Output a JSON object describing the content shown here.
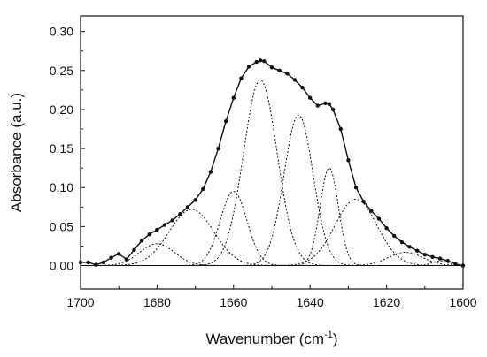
{
  "chart_data": {
    "type": "line",
    "title": "",
    "xlabel": "Wavenumber (cm",
    "xlabel_sup": "-1",
    "xlabel_suffix": ")",
    "ylabel": "Absorbance (a.u.)",
    "xlim": [
      1700,
      1600
    ],
    "ylim": [
      -0.03,
      0.32
    ],
    "x_ticks": [
      1700,
      1680,
      1660,
      1640,
      1620,
      1600
    ],
    "x_tick_labels": [
      "1700",
      "1680",
      "1660",
      "1640",
      "1620",
      "1600"
    ],
    "y_ticks": [
      0.0,
      0.05,
      0.1,
      0.15,
      0.2,
      0.25,
      0.3
    ],
    "y_tick_labels": [
      "0.00",
      "0.05",
      "0.10",
      "0.15",
      "0.20",
      "0.25",
      "0.30"
    ],
    "grid": false,
    "legend": "none",
    "colors": {
      "measured": "#111111",
      "bands": "#111111",
      "baseline": "#111111"
    },
    "measured": {
      "x": [
        1700,
        1698,
        1696,
        1694,
        1692,
        1690,
        1688,
        1686,
        1684,
        1682,
        1680,
        1678,
        1676,
        1674,
        1672,
        1670,
        1668,
        1666,
        1664,
        1662,
        1660,
        1658,
        1656,
        1654,
        1653,
        1652,
        1650,
        1648,
        1646,
        1644,
        1642,
        1640,
        1638,
        1636,
        1635,
        1634,
        1632,
        1630,
        1628,
        1626,
        1624,
        1622,
        1620,
        1618,
        1616,
        1614,
        1612,
        1610,
        1608,
        1606,
        1604,
        1602,
        1600
      ],
      "y": [
        0.004,
        0.004,
        0.001,
        0.004,
        0.01,
        0.015,
        0.008,
        0.02,
        0.032,
        0.04,
        0.046,
        0.052,
        0.058,
        0.066,
        0.075,
        0.084,
        0.098,
        0.12,
        0.15,
        0.185,
        0.215,
        0.24,
        0.255,
        0.261,
        0.263,
        0.262,
        0.254,
        0.25,
        0.246,
        0.238,
        0.228,
        0.215,
        0.205,
        0.208,
        0.207,
        0.2,
        0.175,
        0.135,
        0.1,
        0.082,
        0.07,
        0.06,
        0.048,
        0.038,
        0.03,
        0.024,
        0.019,
        0.014,
        0.011,
        0.009,
        0.006,
        0.002,
        0.0
      ]
    },
    "bands": [
      {
        "center": 1680,
        "height": 0.028,
        "width": 4.5
      },
      {
        "center": 1671,
        "height": 0.072,
        "width": 5.8
      },
      {
        "center": 1660,
        "height": 0.095,
        "width": 3.5
      },
      {
        "center": 1653,
        "height": 0.238,
        "width": 4.4
      },
      {
        "center": 1643,
        "height": 0.193,
        "width": 3.8
      },
      {
        "center": 1635,
        "height": 0.125,
        "width": 2.4
      },
      {
        "center": 1628,
        "height": 0.085,
        "width": 5.5
      },
      {
        "center": 1615,
        "height": 0.017,
        "width": 4.5
      },
      {
        "center": 1606,
        "height": 0.006,
        "width": 2.0
      }
    ]
  }
}
